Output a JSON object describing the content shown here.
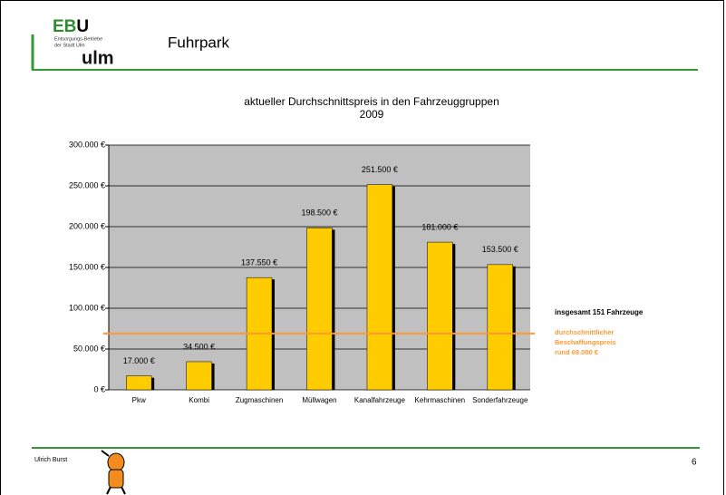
{
  "header": {
    "logo_green": "EB",
    "logo_black": "U",
    "logo_sub_1": "Entsorgungs-Betriebe",
    "logo_sub_2": "der Stadt Ulm",
    "logo_city": "ulm",
    "title": "Fuhrpark"
  },
  "footer": {
    "author": "Ulrich Burst",
    "page": "6"
  },
  "chart_data": {
    "type": "bar",
    "title": "aktueller Durchschnittspreis in den Fahrzeuggruppen",
    "subtitle": "2009",
    "categories": [
      "Pkw",
      "Kombi",
      "Zugmaschinen",
      "Müllwagen",
      "Kanalfahrzeuge",
      "Kehrmaschinen",
      "Sonderfahrzeuge"
    ],
    "values": [
      17000,
      34500,
      137550,
      198500,
      251500,
      181000,
      153500
    ],
    "value_labels": [
      "17.000 €",
      "34.500 €",
      "137.550 €",
      "198.500 €",
      "251.500 €",
      "181.000 €",
      "153.500 €"
    ],
    "color": "#ffcc00",
    "ylim": [
      0,
      300000
    ],
    "yticks": [
      {
        "value": 0,
        "label": "0 €"
      },
      {
        "value": 50000,
        "label": "50.000 €"
      },
      {
        "value": 100000,
        "label": "100.000 €"
      },
      {
        "value": 150000,
        "label": "150.000 €"
      },
      {
        "value": 200000,
        "label": "200.000 €"
      },
      {
        "value": 250000,
        "label": "250.000 €"
      },
      {
        "value": 300000,
        "label": "300.000 €"
      }
    ],
    "grid": true,
    "reference_line": {
      "value": 69000,
      "color": "#ff9933"
    },
    "annotations": [
      "insgesamt  151 Fahrzeuge",
      "durchschnittlicher",
      "Beschaffungspreis",
      "rund 69.000 €"
    ]
  }
}
